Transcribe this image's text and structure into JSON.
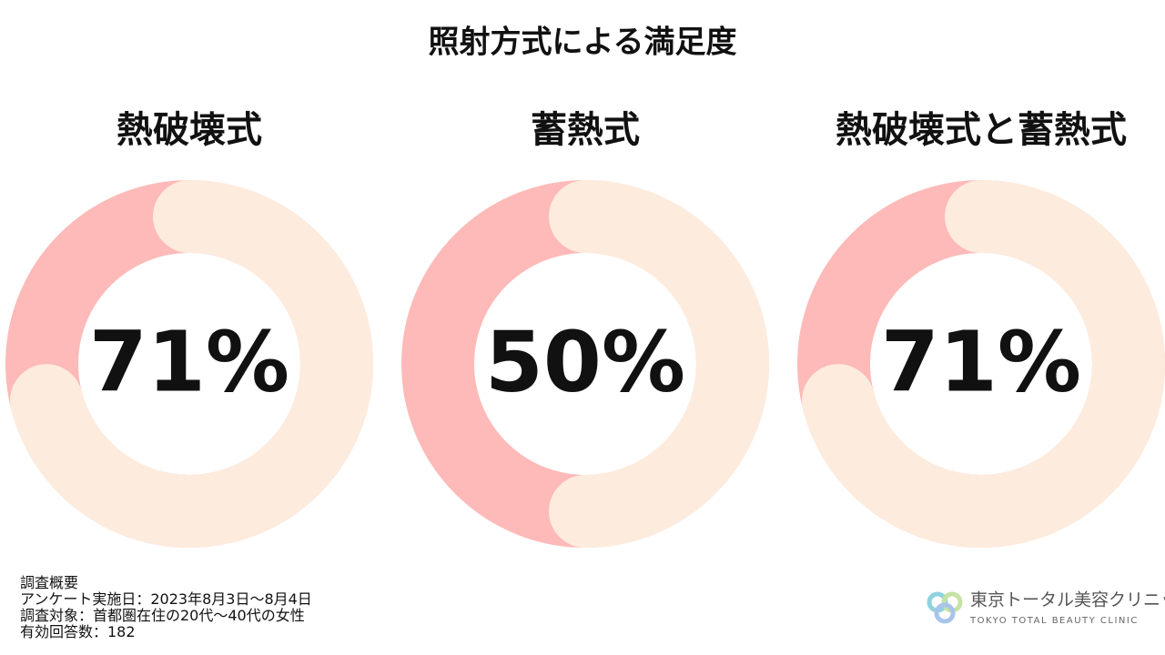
{
  "title": "照射方式による満足度",
  "chart_data": [
    {
      "type": "donut",
      "title": "熱破壊式",
      "values": [
        71
      ],
      "value_labels": [
        "71%"
      ],
      "color": "#fdecdd",
      "track_color": "#fdbab8"
    },
    {
      "type": "donut",
      "title": "蓄熱式",
      "values": [
        50
      ],
      "value_labels": [
        "50%"
      ],
      "color": "#fdecdd",
      "track_color": "#fdbab8"
    },
    {
      "type": "donut",
      "title": "熱破壊式と蓄熱式",
      "values": [
        71
      ],
      "value_labels": [
        "71%"
      ],
      "color": "#fdecdd",
      "track_color": "#fdbab8"
    }
  ],
  "notes": [
    "調査概要",
    "アンケート実施日：2023年8月3日〜8月4日",
    "調査対象：首都圏在住の20代〜40代の女性",
    "有効回答数：182"
  ],
  "logo": {
    "name": "東京トータル美容クリニック",
    "subtitle": "TOKYO TOTAL BEAUTY CLINIC"
  }
}
